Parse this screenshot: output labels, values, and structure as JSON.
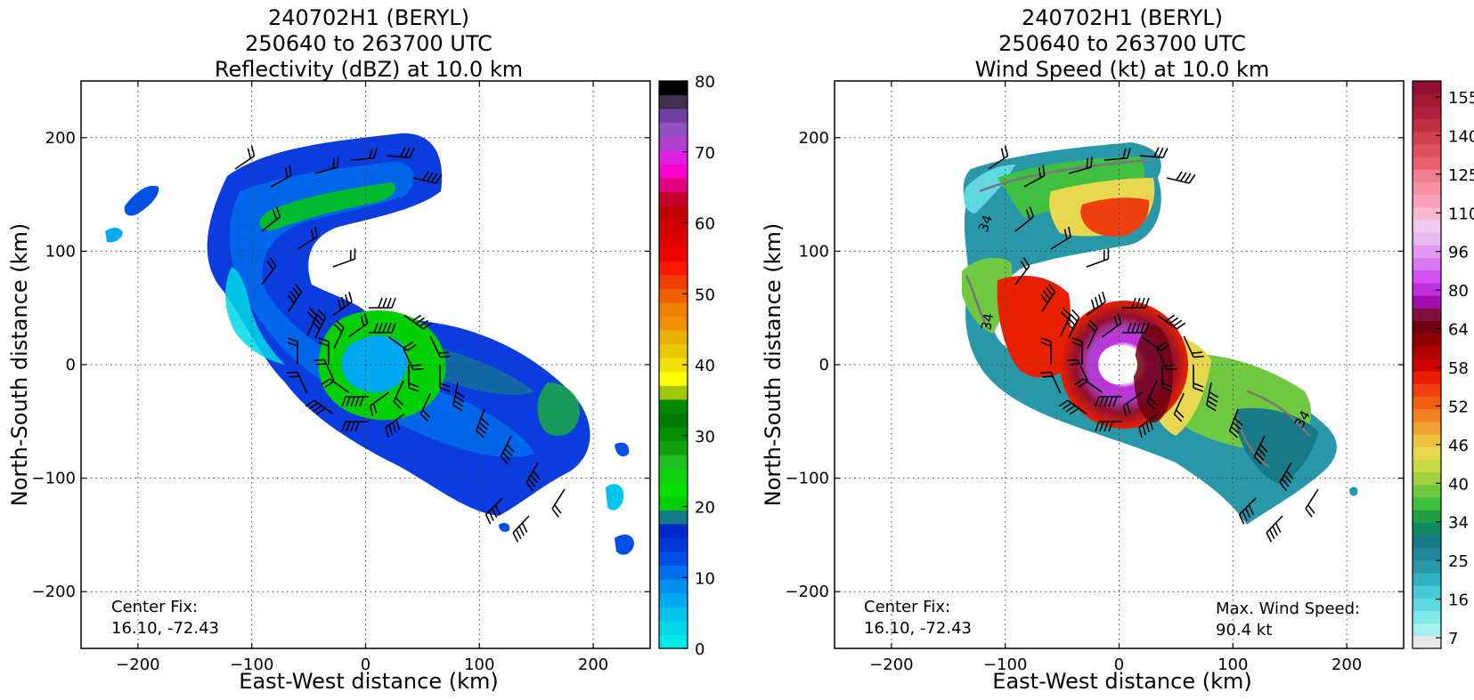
{
  "chart_data": [
    {
      "type": "heatmap",
      "title": [
        "240702H1 (BERYL)",
        "250640 to 263700 UTC",
        "Reflectivity (dBZ) at 10.0 km"
      ],
      "xlabel": "East-West distance (km)",
      "ylabel": "North-South distance (km)",
      "xlim": [
        -250,
        250
      ],
      "ylim": [
        -250,
        250
      ],
      "x_ticks": [
        -200,
        -100,
        0,
        100,
        200
      ],
      "y_ticks": [
        -200,
        -100,
        0,
        100,
        200
      ],
      "x_tick_labels": [
        "−200",
        "−100",
        "0",
        "100",
        "200"
      ],
      "y_tick_labels": [
        "−200",
        "−100",
        "0",
        "100",
        "200"
      ],
      "grid": true,
      "colorbar": {
        "min": 0,
        "max": 80,
        "ticks": [
          0,
          10,
          20,
          30,
          40,
          50,
          60,
          70,
          80
        ],
        "colors": [
          "#00e8e8",
          "#00d8e8",
          "#00c4ee",
          "#00aaf0",
          "#0090f0",
          "#0070ee",
          "#0050e8",
          "#0038d8",
          "#0028c8",
          "#157a8a",
          "#00d000",
          "#00e000",
          "#10d010",
          "#20c020",
          "#10a010",
          "#009000",
          "#007a00",
          "#008a00",
          "#a0c800",
          "#ffff00",
          "#f0e000",
          "#e8c800",
          "#e8b000",
          "#f09000",
          "#f08000",
          "#f06000",
          "#f04000",
          "#ff1800",
          "#f00000",
          "#e00000",
          "#d00000",
          "#c00000",
          "#c80030",
          "#e00080",
          "#ff00cc",
          "#e020e0",
          "#b040d0",
          "#9050c0",
          "#7040a0",
          "#403050",
          "#000000"
        ]
      },
      "annotations": {
        "center_fix_label": "Center Fix:",
        "center_fix_value": "16.10, -72.43"
      },
      "series": [
        {
          "x": [
            -200,
            -220,
            0,
            0,
            150,
            180,
            210,
            230,
            120,
            80
          ],
          "y": [
            150,
            120,
            15,
            0,
            -50,
            -70,
            -110,
            -160,
            -120,
            -60
          ]
        }
      ]
    },
    {
      "type": "heatmap",
      "title": [
        "240702H1 (BERYL)",
        "250640 to 263700 UTC",
        "Wind Speed (kt) at 10.0 km"
      ],
      "xlabel": "East-West distance (km)",
      "ylabel": "North-South distance (km)",
      "xlim": [
        -250,
        250
      ],
      "ylim": [
        -250,
        250
      ],
      "x_ticks": [
        -200,
        -100,
        0,
        100,
        200
      ],
      "y_ticks": [
        -200,
        -100,
        0,
        100,
        200
      ],
      "x_tick_labels": [
        "−200",
        "−100",
        "0",
        "100",
        "200"
      ],
      "y_tick_labels": [
        "−200",
        "−100",
        "0",
        "100",
        "200"
      ],
      "grid": true,
      "contour_label": "34",
      "colorbar": {
        "ticks_labels": [
          "7",
          "16",
          "25",
          "34",
          "40",
          "46",
          "52",
          "58",
          "64",
          "80",
          "96",
          "110",
          "125",
          "140",
          "155"
        ],
        "colors": [
          "#e8e8e8",
          "#a8f0f0",
          "#80e8e8",
          "#60d8e0",
          "#48c8d0",
          "#30b0c0",
          "#2898a8",
          "#208898",
          "#187a88",
          "#108a60",
          "#20a040",
          "#40c040",
          "#70c840",
          "#a0d040",
          "#c8d840",
          "#e8d850",
          "#f0c040",
          "#f0a030",
          "#f08020",
          "#f06010",
          "#f04010",
          "#e82000",
          "#d00000",
          "#b00000",
          "#900000",
          "#700010",
          "#801040",
          "#a010b0",
          "#c030e0",
          "#d050f0",
          "#d878f0",
          "#e098f0",
          "#e8b8f0",
          "#f0c8f0",
          "#f8b8d0",
          "#f8a0b8",
          "#f890a0",
          "#f08090",
          "#e86070",
          "#e05060",
          "#d04050",
          "#c03040",
          "#b02040",
          "#a01830",
          "#901030"
        ]
      },
      "annotations": {
        "center_fix_label": "Center Fix:",
        "center_fix_value": "16.10, -72.43",
        "max_wind_label": "Max. Wind Speed:",
        "max_wind_value": "90.4 kt"
      },
      "series": [
        {
          "x": [
            -120,
            -60,
            0,
            60,
            130,
            170
          ],
          "y": [
            150,
            30,
            0,
            -30,
            -70,
            -110
          ]
        }
      ]
    }
  ]
}
